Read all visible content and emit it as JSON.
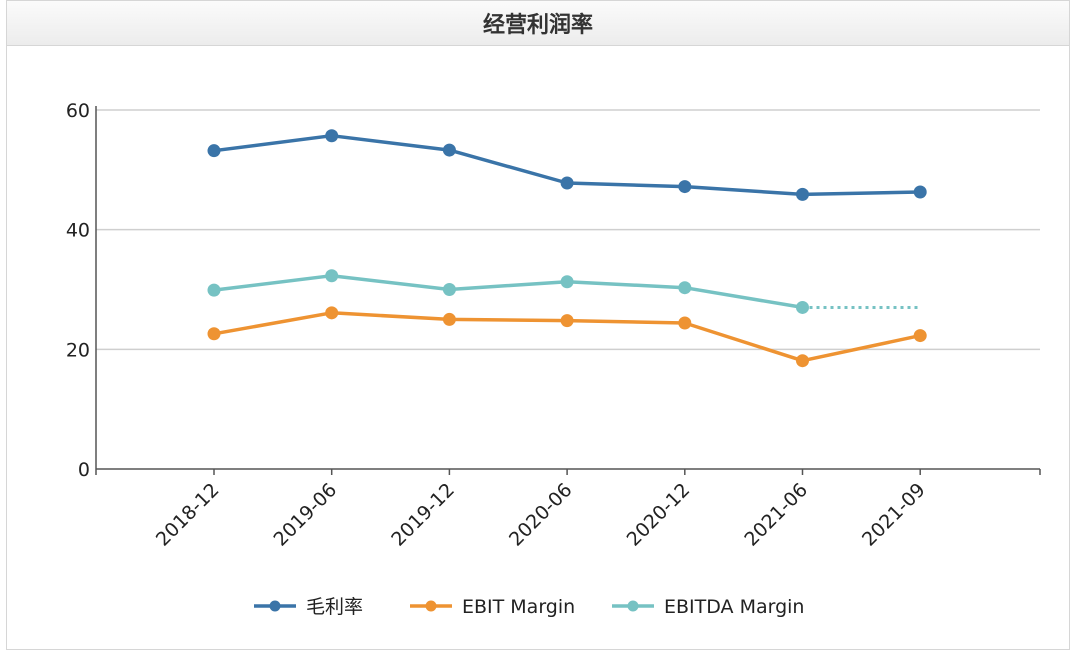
{
  "header": {
    "title": "经营利润率"
  },
  "colors": {
    "gross_margin": "#3a74a8",
    "ebit_margin": "#ee9332",
    "ebitda_margin": "#76c2c3",
    "grid": "#cfcfcf",
    "axis": "#555555"
  },
  "chart_data": {
    "type": "line",
    "title": "经营利润率",
    "xlabel": "",
    "ylabel": "",
    "categories": [
      "2018-12",
      "2019-06",
      "2019-12",
      "2020-06",
      "2020-12",
      "2021-06",
      "2021-09"
    ],
    "y_ticks": [
      "0",
      "20",
      "40",
      "60"
    ],
    "ylim": [
      0,
      60
    ],
    "grid": true,
    "legend_position": "bottom",
    "series": [
      {
        "name": "毛利率",
        "color_key": "gross_margin",
        "values": [
          53.2,
          55.7,
          53.3,
          47.8,
          47.2,
          45.9,
          46.3
        ]
      },
      {
        "name": "EBIT Margin",
        "color_key": "ebit_margin",
        "values": [
          22.6,
          26.1,
          25.0,
          24.8,
          24.4,
          18.1,
          22.3
        ]
      },
      {
        "name": "EBITDA Margin",
        "color_key": "ebitda_margin",
        "values": [
          29.9,
          32.3,
          30.0,
          31.3,
          30.3,
          27.0,
          null
        ]
      }
    ]
  }
}
